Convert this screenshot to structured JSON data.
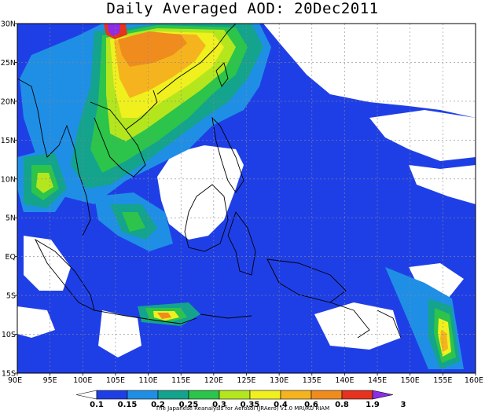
{
  "title": "Daily Averaged AOD: 20Dec2011",
  "credit": "The Japanese Reanalysis for Aerosol (JRAero) v1.0 MRI/KU RIAM",
  "lat_labels": [
    "30N",
    "25N",
    "20N",
    "15N",
    "10N",
    "5N",
    "EQ",
    "5S",
    "10S",
    "15S"
  ],
  "lon_labels": [
    "90E",
    "95E",
    "100E",
    "105E",
    "110E",
    "115E",
    "120E",
    "125E",
    "130E",
    "135E",
    "140E",
    "145E",
    "150E",
    "155E",
    "160E"
  ],
  "colorbar": {
    "ticks": [
      "0.1",
      "0.15",
      "0.2",
      "0.25",
      "0.3",
      "0.35",
      "0.4",
      "0.6",
      "0.8",
      "1.9",
      "3"
    ],
    "colors": [
      "#ffffff",
      "#1f3fe6",
      "#1f8fe6",
      "#14a38c",
      "#2cc44a",
      "#b4e61e",
      "#f0f01e",
      "#f5b41e",
      "#f08c1e",
      "#e6321e",
      "#8c2de6"
    ]
  },
  "palette": {
    "c0": "#ffffff",
    "c1": "#1f3fe6",
    "c2": "#1f8fe6",
    "c3": "#14a38c",
    "c4": "#2cc44a",
    "c5": "#b4e61e",
    "c6": "#f0f01e",
    "c7": "#f5b41e",
    "c8": "#f08c1e",
    "c9": "#e6321e",
    "c10": "#8c2de6"
  }
}
